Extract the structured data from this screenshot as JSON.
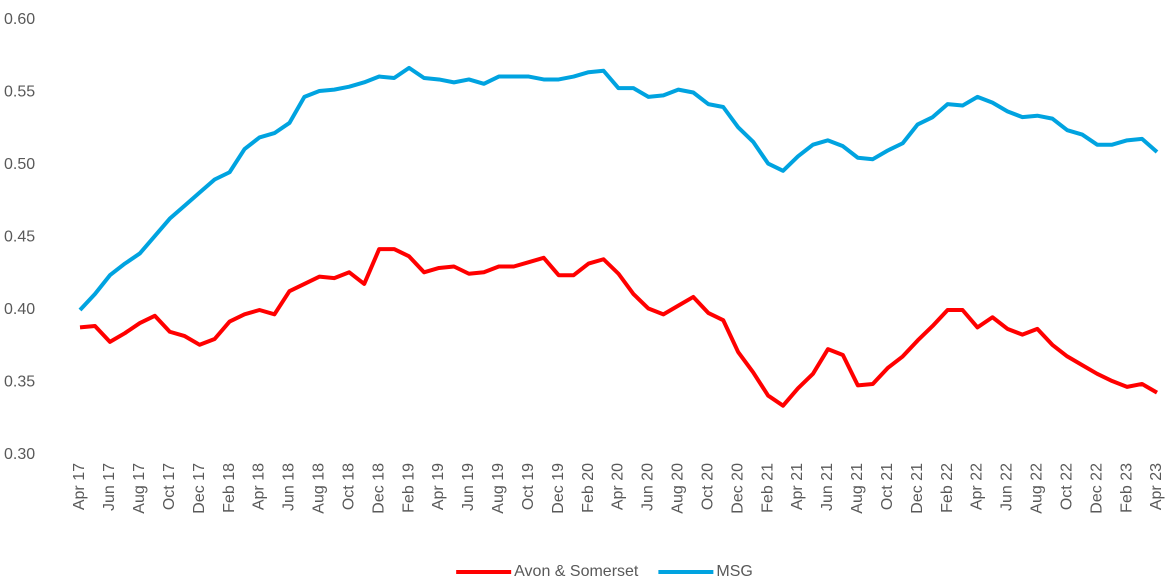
{
  "chart_data": {
    "type": "line",
    "categories": [
      "Apr 17",
      null,
      "Jun 17",
      null,
      "Aug 17",
      null,
      "Oct 17",
      null,
      "Dec 17",
      null,
      "Feb 18",
      null,
      "Apr 18",
      null,
      "Jun 18",
      null,
      "Aug 18",
      null,
      "Oct 18",
      null,
      "Dec 18",
      null,
      "Feb 19",
      null,
      "Apr 19",
      null,
      "Jun 19",
      null,
      "Aug 19",
      null,
      "Oct 19",
      null,
      "Dec 19",
      null,
      "Feb 20",
      null,
      "Apr 20",
      null,
      "Jun 20",
      null,
      "Aug 20",
      null,
      "Oct 20",
      null,
      "Dec 20",
      null,
      "Feb 21",
      null,
      "Apr 21",
      null,
      "Jun 21",
      null,
      "Aug 21",
      null,
      "Oct 21",
      null,
      "Dec 21",
      null,
      "Feb 22",
      null,
      "Apr 22",
      null,
      "Jun 22",
      null,
      "Aug 22",
      null,
      "Oct 22",
      null,
      "Dec 22",
      null,
      "Feb 23",
      null,
      "Apr 23"
    ],
    "series": [
      {
        "name": "Avon & Somerset",
        "color": "#ff0000",
        "values": [
          0.388,
          0.389,
          0.378,
          0.384,
          0.391,
          0.396,
          0.385,
          0.382,
          0.376,
          0.38,
          0.392,
          0.397,
          0.4,
          0.397,
          0.413,
          0.418,
          0.423,
          0.422,
          0.426,
          0.418,
          0.442,
          0.442,
          0.437,
          0.426,
          0.429,
          0.43,
          0.425,
          0.426,
          0.43,
          0.43,
          0.433,
          0.436,
          0.424,
          0.424,
          0.432,
          0.435,
          0.425,
          0.411,
          0.401,
          0.397,
          0.403,
          0.409,
          0.398,
          0.393,
          0.371,
          0.357,
          0.341,
          0.334,
          0.346,
          0.356,
          0.373,
          0.369,
          0.348,
          0.349,
          0.36,
          0.368,
          0.379,
          0.389,
          0.4,
          0.4,
          0.388,
          0.395,
          0.387,
          0.383,
          0.387,
          0.376,
          0.368,
          0.362,
          0.356,
          0.351,
          0.347,
          0.349,
          0.343
        ]
      },
      {
        "name": "MSG",
        "color": "#00a3e0",
        "values": [
          0.4,
          0.411,
          0.424,
          0.432,
          0.439,
          0.451,
          0.463,
          0.472,
          0.481,
          0.49,
          0.495,
          0.511,
          0.519,
          0.522,
          0.529,
          0.547,
          0.551,
          0.552,
          0.554,
          0.557,
          0.561,
          0.56,
          0.567,
          0.56,
          0.559,
          0.557,
          0.559,
          0.556,
          0.561,
          0.561,
          0.561,
          0.559,
          0.559,
          0.561,
          0.564,
          0.565,
          0.553,
          0.553,
          0.547,
          0.548,
          0.552,
          0.55,
          0.542,
          0.54,
          0.526,
          0.516,
          0.501,
          0.496,
          0.506,
          0.514,
          0.517,
          0.513,
          0.505,
          0.504,
          0.51,
          0.515,
          0.528,
          0.533,
          0.542,
          0.541,
          0.547,
          0.543,
          0.537,
          0.533,
          0.534,
          0.532,
          0.524,
          0.521,
          0.514,
          0.514,
          0.517,
          0.518,
          0.509
        ]
      }
    ],
    "ylim": [
      0.3,
      0.6
    ],
    "yticks": [
      {
        "value": 0.3,
        "label": "0.30"
      },
      {
        "value": 0.35,
        "label": "0.35"
      },
      {
        "value": 0.4,
        "label": "0.40"
      },
      {
        "value": 0.45,
        "label": "0.45"
      },
      {
        "value": 0.5,
        "label": "0.50"
      },
      {
        "value": 0.55,
        "label": "0.55"
      },
      {
        "value": 0.6,
        "label": "0.60"
      }
    ],
    "grid": false,
    "legend": "bottom"
  }
}
